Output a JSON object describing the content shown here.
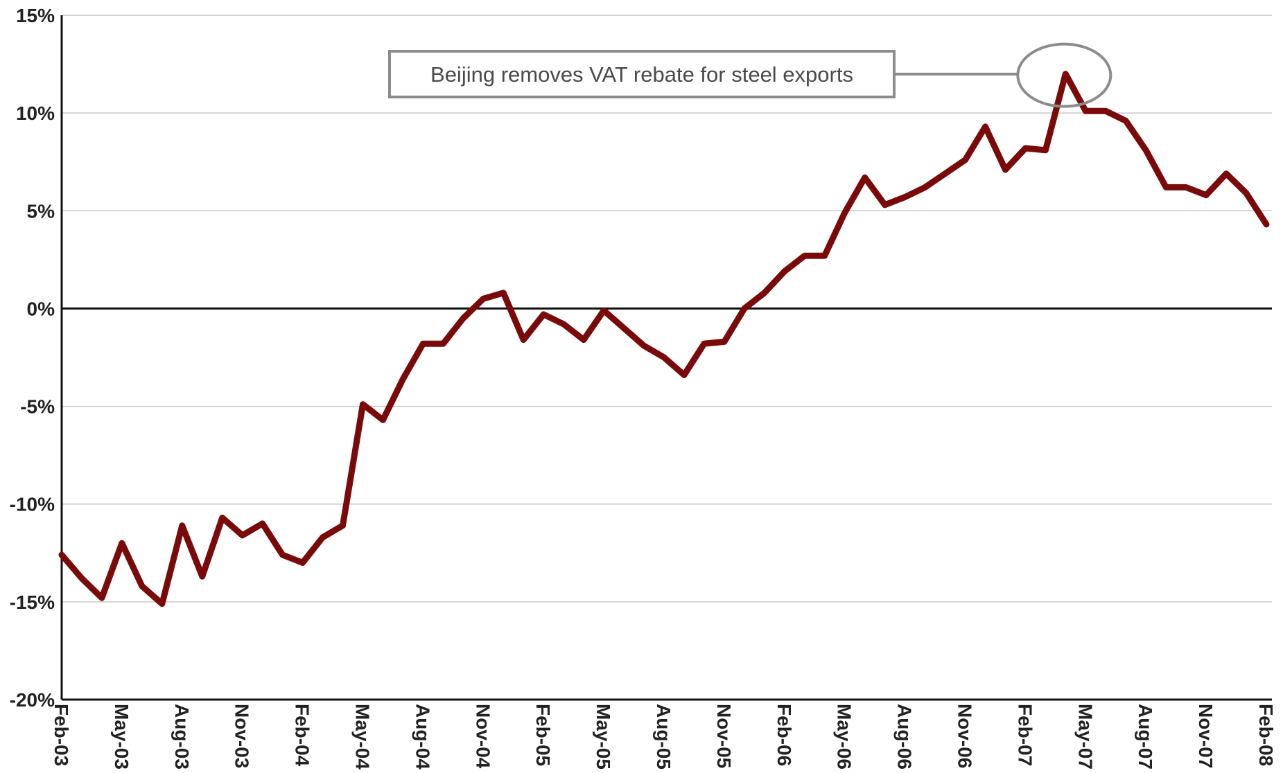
{
  "chart_data": {
    "type": "line",
    "title": "",
    "xlabel": "",
    "ylabel": "",
    "ylim": [
      -20,
      15
    ],
    "y_ticks": [
      15,
      10,
      5,
      0,
      -5,
      -10,
      -15,
      -20
    ],
    "y_tick_labels": [
      "15%",
      "10%",
      "5%",
      "0%",
      "-5%",
      "-10%",
      "-15%",
      "-20%"
    ],
    "x_tick_labels": [
      "Feb-03",
      "May-03",
      "Aug-03",
      "Nov-03",
      "Feb-04",
      "May-04",
      "Aug-04",
      "Nov-04",
      "Feb-05",
      "May-05",
      "Aug-05",
      "Nov-05",
      "Feb-06",
      "May-06",
      "Aug-06",
      "Nov-06",
      "Feb-07",
      "May-07",
      "Aug-07",
      "Nov-07",
      "Feb-08"
    ],
    "grid": true,
    "colors": {
      "series": "#7a0a0a",
      "zero_line": "#111111",
      "grid": "#c8c8c8",
      "axis": "#111111",
      "annotation": "#8c8c8c"
    },
    "x": [
      "Feb-03",
      "Mar-03",
      "Apr-03",
      "May-03",
      "Jun-03",
      "Jul-03",
      "Aug-03",
      "Sep-03",
      "Oct-03",
      "Nov-03",
      "Dec-03",
      "Jan-04",
      "Feb-04",
      "Mar-04",
      "Apr-04",
      "May-04",
      "Jun-04",
      "Jul-04",
      "Aug-04",
      "Sep-04",
      "Oct-04",
      "Nov-04",
      "Dec-04",
      "Jan-05",
      "Feb-05",
      "Mar-05",
      "Apr-05",
      "May-05",
      "Jun-05",
      "Jul-05",
      "Aug-05",
      "Sep-05",
      "Oct-05",
      "Nov-05",
      "Dec-05",
      "Jan-06",
      "Feb-06",
      "Mar-06",
      "Apr-06",
      "May-06",
      "Jun-06",
      "Jul-06",
      "Aug-06",
      "Sep-06",
      "Oct-06",
      "Nov-06",
      "Dec-06",
      "Jan-07",
      "Feb-07",
      "Mar-07",
      "Apr-07",
      "May-07",
      "Jun-07",
      "Jul-07",
      "Aug-07",
      "Sep-07",
      "Oct-07",
      "Nov-07",
      "Dec-07",
      "Jan-08",
      "Feb-08"
    ],
    "series": [
      {
        "values": [
          -12.6,
          -13.8,
          -14.8,
          -12.0,
          -14.2,
          -15.1,
          -11.1,
          -13.7,
          -10.7,
          -11.6,
          -11.0,
          -12.6,
          -13.0,
          -11.7,
          -11.1,
          -4.9,
          -5.7,
          -3.6,
          -1.8,
          -1.8,
          -0.5,
          0.5,
          0.8,
          -1.6,
          -0.3,
          -0.8,
          -1.6,
          -0.1,
          -1.0,
          -1.9,
          -2.5,
          -3.4,
          -1.8,
          -1.7,
          0.0,
          0.8,
          1.9,
          2.7,
          2.7,
          4.9,
          6.7,
          5.3,
          5.7,
          6.2,
          6.9,
          7.6,
          9.3,
          7.1,
          8.2,
          8.1,
          12.0,
          10.1,
          10.1,
          9.6,
          8.1,
          6.2,
          6.2,
          5.8,
          6.9,
          5.9,
          4.3
        ]
      }
    ],
    "annotation": {
      "text": "Beijing removes VAT rebate for steel exports",
      "target_x": "Apr-07",
      "target_y": 12.0
    }
  }
}
